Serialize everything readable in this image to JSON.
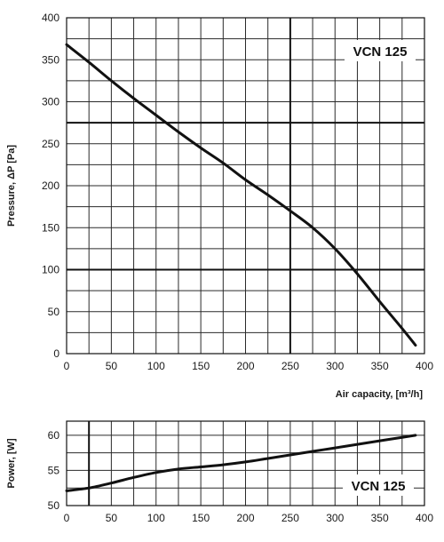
{
  "chart_data": [
    {
      "type": "line",
      "ylabel": "Pressure, ΔP [Pa]",
      "xlabel": "Air capacity, [m³/h]",
      "model_label": "VCN 125",
      "xlim": [
        0,
        400
      ],
      "ylim": [
        0,
        400
      ],
      "x_ticks": [
        0,
        50,
        100,
        150,
        200,
        250,
        300,
        350,
        400
      ],
      "y_ticks": [
        0,
        50,
        100,
        150,
        200,
        250,
        300,
        350,
        400
      ],
      "grid": true,
      "series": [
        {
          "x": [
            0,
            25,
            50,
            75,
            100,
            125,
            150,
            175,
            200,
            225,
            250,
            275,
            300,
            325,
            350,
            375,
            390
          ],
          "values": [
            368,
            347,
            325,
            304,
            284,
            264,
            245,
            227,
            207,
            189,
            170,
            150,
            125,
            95,
            62,
            30,
            10
          ]
        }
      ],
      "reference_lines": {
        "x": [
          250
        ],
        "y": [
          275,
          100
        ]
      }
    },
    {
      "type": "line",
      "ylabel": "Power, [W]",
      "xlabel": "",
      "model_label": "VCN 125",
      "xlim": [
        0,
        400
      ],
      "ylim": [
        50,
        62
      ],
      "x_ticks": [
        0,
        50,
        100,
        150,
        200,
        250,
        300,
        350,
        400
      ],
      "y_ticks": [
        50,
        55,
        60
      ],
      "grid": true,
      "series": [
        {
          "x": [
            0,
            25,
            50,
            75,
            100,
            125,
            150,
            175,
            200,
            225,
            250,
            275,
            300,
            325,
            350,
            375,
            390
          ],
          "values": [
            52.1,
            52.5,
            53.2,
            54.0,
            54.7,
            55.2,
            55.5,
            55.8,
            56.2,
            56.7,
            57.2,
            57.7,
            58.2,
            58.7,
            59.2,
            59.7,
            60.0
          ]
        }
      ],
      "reference_lines": {
        "x": [
          25
        ],
        "y": []
      }
    }
  ]
}
